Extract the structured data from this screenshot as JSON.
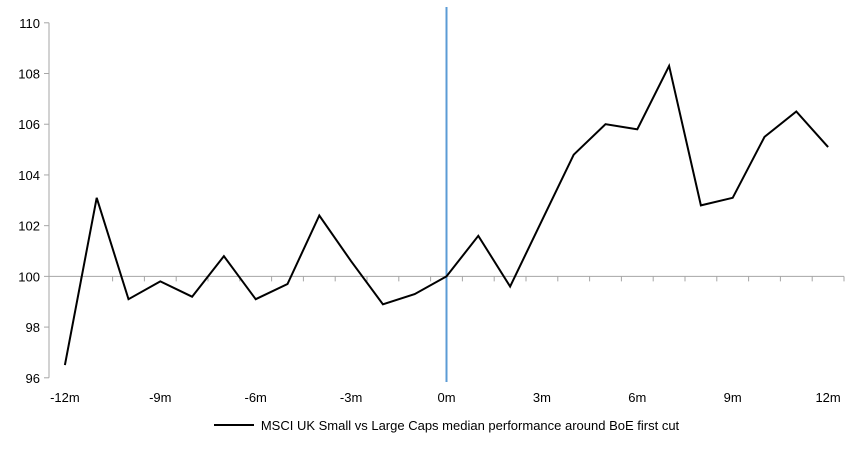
{
  "chart_data": {
    "type": "line",
    "title": "",
    "x_unit": "months relative to BoE first cut",
    "series": [
      {
        "name": "MSCI UK Small vs Large Caps median performance around BoE first cut",
        "x": [
          -12,
          -11,
          -10,
          -9,
          -8,
          -7,
          -6,
          -5,
          -4,
          -3,
          -2,
          -1,
          0,
          1,
          2,
          3,
          4,
          5,
          6,
          7,
          8,
          9,
          10,
          11,
          12
        ],
        "values": [
          96.5,
          103.1,
          99.1,
          99.8,
          99.2,
          100.8,
          99.1,
          99.7,
          102.4,
          100.6,
          98.9,
          99.3,
          100.0,
          101.6,
          99.6,
          102.2,
          104.8,
          106.0,
          105.8,
          108.3,
          102.8,
          103.1,
          105.5,
          106.5,
          105.1
        ]
      }
    ],
    "x_tick_positions": [
      -12,
      -9,
      -6,
      -3,
      0,
      3,
      6,
      9,
      12
    ],
    "x_tick_labels": [
      "-12m",
      "-9m",
      "-6m",
      "-3m",
      "0m",
      "3m",
      "6m",
      "9m",
      "12m"
    ],
    "y_ticks": [
      96,
      98,
      100,
      102,
      104,
      106,
      108,
      110
    ],
    "y_tick_labels": [
      "96",
      "98",
      "100",
      "102",
      "104",
      "106",
      "108",
      "110"
    ],
    "ylim": [
      96,
      110
    ],
    "xlim": [
      -12.5,
      12.5
    ],
    "baseline_value": 100,
    "event_line_x": 0,
    "grid": false,
    "legend_position": "bottom",
    "colors": {
      "series_line": "#000000",
      "axis_and_baseline": "#a6a6a6",
      "event_line": "#5b9bd5",
      "label_text": "#000000"
    }
  }
}
